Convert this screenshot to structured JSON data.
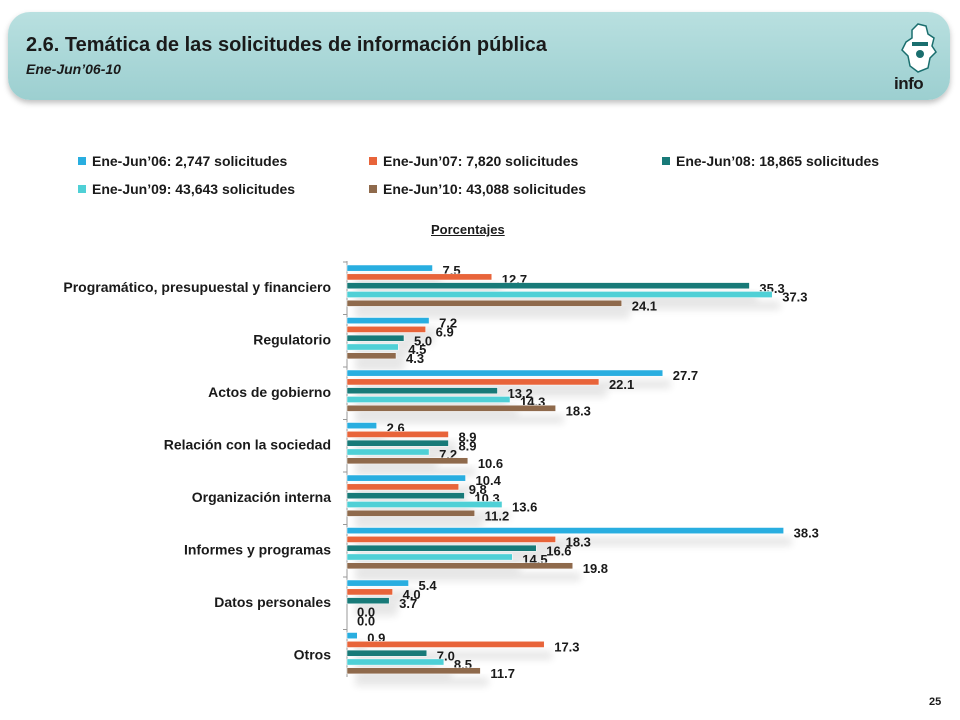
{
  "header": {
    "title": "2.6. Temática de las solicitudes de información pública",
    "subtitle": "Ene-Jun’06-10",
    "logo_text": "info"
  },
  "page_number": "25",
  "chart_data": {
    "type": "bar",
    "orientation": "horizontal",
    "subtitle": "Porcentajes",
    "categories": [
      "Programático, presupuestal y financiero",
      "Regulatorio",
      "Actos de gobierno",
      "Relación con la sociedad",
      "Organización interna",
      "Informes y programas",
      "Datos personales",
      "Otros"
    ],
    "series": [
      {
        "name": "Ene-Jun’06: 2,747 solicitudes",
        "color": "#29aee0",
        "values": [
          7.5,
          7.2,
          27.7,
          2.6,
          10.4,
          38.3,
          5.4,
          0.9
        ]
      },
      {
        "name": "Ene-Jun’07: 7,820 solicitudes",
        "color": "#e8643a",
        "values": [
          12.7,
          6.9,
          22.1,
          8.9,
          9.8,
          18.3,
          4.0,
          17.3
        ]
      },
      {
        "name": "Ene-Jun’08: 18,865 solicitudes",
        "color": "#187a78",
        "values": [
          35.3,
          5.0,
          13.2,
          8.9,
          10.3,
          16.6,
          3.7,
          7.0
        ]
      },
      {
        "name": "Ene-Jun’09: 43,643 solicitudes",
        "color": "#4fd0d6",
        "values": [
          37.3,
          4.5,
          14.3,
          7.2,
          13.6,
          14.5,
          0.0,
          8.5
        ]
      },
      {
        "name": "Ene-Jun’10: 43,088 solicitudes",
        "color": "#8f6a4c",
        "values": [
          24.1,
          4.3,
          18.3,
          10.6,
          11.2,
          19.8,
          0.0,
          11.7
        ]
      }
    ],
    "value_labels": [
      [
        "7.5",
        "7.2",
        "27.7",
        "2.6",
        "10.4",
        "38.3",
        "5.4",
        "0.9"
      ],
      [
        "12.7",
        "6.9",
        "22.1",
        "8.9",
        "9.8",
        "18.3",
        "4.0",
        "17.3"
      ],
      [
        "35.3",
        "5.0",
        "13.2",
        "8.9",
        "10.3",
        "16.6",
        "3.7",
        "7.0"
      ],
      [
        "37.3",
        "4.5",
        "14.3",
        "7.2",
        "13.6",
        "14.5",
        "0.0",
        "8.5"
      ],
      [
        "24.1",
        "4.3",
        "18.3",
        "10.6",
        "11.2",
        "19.8",
        "0.0",
        "11.7"
      ]
    ],
    "xlim": [
      0,
      40
    ],
    "grid": false,
    "legend_position": "top"
  }
}
